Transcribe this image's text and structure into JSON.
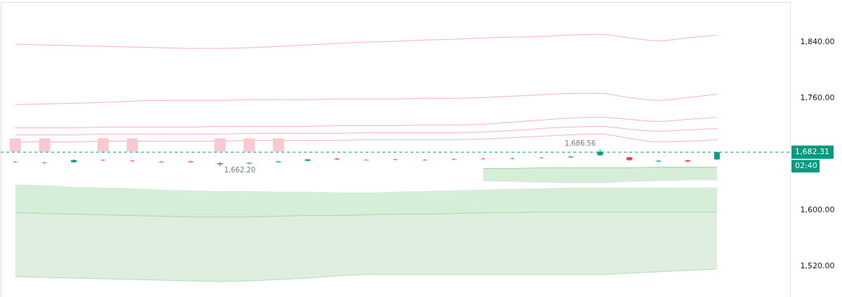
{
  "chart_data": {
    "type": "candlestick",
    "categories": [
      null,
      null,
      null,
      null,
      null,
      null,
      null,
      null,
      null,
      null,
      null,
      null,
      null,
      null,
      null,
      null,
      null,
      null,
      null,
      null,
      null,
      null,
      null,
      null,
      null
    ],
    "ohlc": [
      [
        1668.5,
        1669.5,
        1667,
        1668
      ],
      [
        1667.5,
        1668.5,
        1666,
        1667
      ],
      [
        1668,
        1672,
        1667,
        1671
      ],
      [
        1671,
        1672,
        1669.5,
        1670.5
      ],
      [
        1670,
        1671,
        1668.5,
        1669.5
      ],
      [
        1668,
        1669.5,
        1667,
        1668.5
      ],
      [
        1669,
        1670,
        1667,
        1668
      ],
      [
        1666.5,
        1667.5,
        1662.2,
        1665
      ],
      [
        1666,
        1668,
        1665,
        1667
      ],
      [
        1668,
        1670,
        1667,
        1669
      ],
      [
        1670,
        1673,
        1669,
        1672
      ],
      [
        1673,
        1674,
        1671,
        1672
      ],
      [
        1671.5,
        1672.5,
        1670,
        1671
      ],
      [
        1671.5,
        1673,
        1670.5,
        1672
      ],
      [
        1671.5,
        1672.5,
        1670,
        1671
      ],
      [
        1672,
        1673.5,
        1671,
        1672.5
      ],
      [
        1673,
        1674,
        1671.5,
        1672.5
      ],
      [
        1673,
        1674.5,
        1672,
        1673.5
      ],
      [
        1674,
        1675.5,
        1673,
        1674.5
      ],
      [
        1675,
        1677,
        1674,
        1676
      ],
      [
        1678,
        1686.56,
        1677,
        1683
      ],
      [
        1675,
        1676,
        1670,
        1671
      ],
      [
        1669,
        1671,
        1668,
        1670
      ],
      [
        1670.5,
        1671.5,
        1668,
        1669
      ],
      [
        1672,
        1683,
        1671,
        1682.31
      ]
    ],
    "colors": [
      "#f23645",
      "#f23645",
      "#089981",
      "#f23645",
      "#f23645",
      "#089981",
      "#f23645",
      "#f23645",
      "#089981",
      "#089981",
      "#089981",
      "#f23645",
      "#f23645",
      "#089981",
      "#f23645",
      "#089981",
      "#f23645",
      "#089981",
      "#089981",
      "#089981",
      "#089981",
      "#f23645",
      "#089981",
      "#f23645",
      "#089981"
    ],
    "series": [
      {
        "type": "line",
        "color": "#f7b3bb",
        "values": [
          1836,
          1835,
          1834,
          1833,
          1832,
          1831,
          1830,
          1830,
          1831,
          1833,
          1835,
          1837,
          1839,
          1840,
          1842,
          1843,
          1845,
          1846,
          1847,
          1849,
          1850,
          1845,
          1841,
          1845,
          1849
        ]
      },
      {
        "type": "line",
        "color": "#f7b3bb",
        "values": [
          1750,
          1751,
          1752,
          1753,
          1755,
          1756,
          1756,
          1756,
          1757,
          1757,
          1757,
          1758,
          1758,
          1758,
          1759,
          1759,
          1760,
          1762,
          1764,
          1766,
          1766,
          1760,
          1756,
          1760,
          1765
        ]
      },
      {
        "type": "line",
        "color": "#f7b3bb",
        "values": [
          1717,
          1717,
          1717,
          1718,
          1718,
          1718,
          1718,
          1719,
          1719,
          1719,
          1719,
          1720,
          1720,
          1720,
          1721,
          1721,
          1722,
          1725,
          1728,
          1731,
          1732,
          1729,
          1726,
          1729,
          1732
        ]
      },
      {
        "type": "line",
        "color": "#f7b3bb",
        "values": [
          1707,
          1707,
          1707,
          1708,
          1708,
          1708,
          1708,
          1708,
          1709,
          1709,
          1709,
          1709,
          1710,
          1710,
          1710,
          1710,
          1711,
          1713,
          1716,
          1718,
          1719,
          1715,
          1712,
          1714,
          1716
        ]
      },
      {
        "type": "line",
        "color": "#f7b3bb",
        "values": [
          1697,
          1697,
          1697,
          1698,
          1698,
          1698,
          1698,
          1698,
          1699,
          1699,
          1699,
          1699,
          1700,
          1700,
          1700,
          1700,
          1701,
          1703,
          1705,
          1707,
          1708,
          1702,
          1697,
          1698,
          1700
        ]
      },
      {
        "type": "bar",
        "color": "#f9c8d0",
        "base": [
          1683,
          1683,
          null,
          1683,
          1683,
          null,
          null,
          1683,
          1683,
          1683,
          null,
          null,
          null,
          null,
          null,
          null,
          null,
          null,
          null,
          null,
          null,
          null,
          null,
          null,
          null
        ],
        "values": [
          19,
          19,
          null,
          19,
          19,
          null,
          null,
          19,
          19,
          19,
          null,
          null,
          null,
          null,
          null,
          null,
          null,
          null,
          null,
          null,
          null,
          null,
          null,
          null,
          null
        ]
      },
      {
        "type": "line",
        "color": "#a5d6a7",
        "values": [
          null,
          null,
          null,
          null,
          null,
          null,
          null,
          null,
          null,
          null,
          null,
          null,
          null,
          null,
          null,
          null,
          1659,
          1659,
          1660,
          1660,
          1660,
          1660,
          1661,
          1661,
          1661
        ],
        "upper": [
          null,
          null,
          null,
          null,
          null,
          null,
          null,
          null,
          null,
          null,
          null,
          null,
          null,
          null,
          null,
          null,
          1659,
          1659,
          1660,
          1660,
          1660,
          1660,
          1661,
          1661,
          1661
        ],
        "lower": [
          null,
          null,
          null,
          null,
          null,
          null,
          null,
          null,
          null,
          null,
          null,
          null,
          null,
          null,
          null,
          null,
          1641,
          1640,
          1639,
          1638,
          1638,
          1640,
          1641,
          1642,
          1642
        ]
      },
      {
        "type": "line",
        "color": "#a5d6a7",
        "values": [
          1596,
          1595,
          1594,
          1593,
          1592,
          1591,
          1590,
          1590,
          1590,
          1591,
          1592,
          1592,
          1593,
          1594,
          1594,
          1595,
          1596,
          1596,
          1597,
          1597,
          1597,
          1597,
          1597,
          1597,
          1597
        ],
        "upper": [
          1636,
          1635,
          1633,
          1632,
          1631,
          1629,
          1628,
          1627,
          1627,
          1626,
          1626,
          1625,
          1625,
          1626,
          1627,
          1628,
          1629,
          1630,
          1631,
          1632,
          1632,
          1632,
          1632,
          1632,
          1632
        ],
        "lower": [
          1596,
          1595,
          1594,
          1593,
          1592,
          1591,
          1590,
          1590,
          1590,
          1591,
          1592,
          1592,
          1593,
          1594,
          1594,
          1595,
          1596,
          1596,
          1597,
          1597,
          1597,
          1597,
          1597,
          1597,
          1597
        ]
      },
      {
        "type": "line",
        "color": "#b5dcb7",
        "values": [
          1505,
          1504,
          1503,
          1502,
          1501,
          1500,
          1499,
          1498,
          1499,
          1501,
          1503,
          1506,
          1508,
          1508,
          1508,
          1508,
          1508,
          1508,
          1508,
          1508,
          1508,
          1510,
          1512,
          1514,
          1516
        ],
        "upper": [
          1596,
          1595,
          1594,
          1593,
          1592,
          1591,
          1590,
          1590,
          1590,
          1591,
          1592,
          1592,
          1593,
          1594,
          1594,
          1595,
          1596,
          1596,
          1597,
          1597,
          1597,
          1597,
          1597,
          1597,
          1597
        ],
        "lower": [
          1505,
          1504,
          1503,
          1502,
          1501,
          1500,
          1499,
          1498,
          1499,
          1501,
          1503,
          1506,
          1508,
          1508,
          1508,
          1508,
          1508,
          1508,
          1508,
          1508,
          1508,
          1510,
          1512,
          1514,
          1516
        ]
      }
    ],
    "ylim": [
      1481,
      1891
    ],
    "yticks": [
      {
        "value": 1520,
        "label": "1,520.00"
      },
      {
        "value": 1600,
        "label": "1,600.00"
      },
      {
        "value": 1760,
        "label": "1,760.00"
      },
      {
        "value": 1840,
        "label": "1,840.00"
      }
    ],
    "tick_labels": "y",
    "grid": false,
    "ref_lines": [
      {
        "axis": "y",
        "value": 1682.31,
        "label": "1,682.31",
        "color": "#089981",
        "line_style": "dashed"
      }
    ],
    "annotations": [
      "1,686.56",
      "1,662.20",
      "02:40"
    ]
  }
}
